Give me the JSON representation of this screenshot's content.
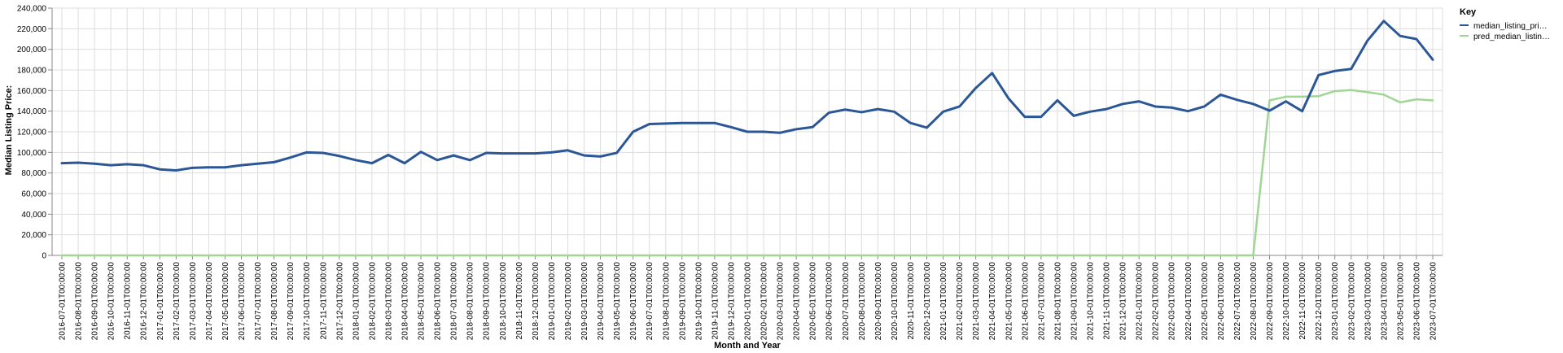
{
  "chart_data": {
    "type": "line",
    "xlabel": "Month and Year",
    "ylabel": "Median Listing Price:",
    "ylim": [
      0,
      240000
    ],
    "yticks": [
      0,
      20000,
      40000,
      60000,
      80000,
      100000,
      120000,
      140000,
      160000,
      180000,
      200000,
      220000,
      240000
    ],
    "ytick_labels": [
      "0",
      "20,000",
      "40,000",
      "60,000",
      "80,000",
      "100,000",
      "120,000",
      "140,000",
      "160,000",
      "180,000",
      "200,000",
      "220,000",
      "240,000"
    ],
    "grid": true,
    "legend": {
      "title": "Key",
      "position": "right",
      "entries": [
        "median_listing_pri…",
        "pred_median_listin…"
      ]
    },
    "categories": [
      "2016-07-01T00:00:00",
      "2016-08-01T00:00:00",
      "2016-09-01T00:00:00",
      "2016-10-01T00:00:00",
      "2016-11-01T00:00:00",
      "2016-12-01T00:00:00",
      "2017-01-01T00:00:00",
      "2017-02-01T00:00:00",
      "2017-03-01T00:00:00",
      "2017-04-01T00:00:00",
      "2017-05-01T00:00:00",
      "2017-06-01T00:00:00",
      "2017-07-01T00:00:00",
      "2017-08-01T00:00:00",
      "2017-09-01T00:00:00",
      "2017-10-01T00:00:00",
      "2017-11-01T00:00:00",
      "2017-12-01T00:00:00",
      "2018-01-01T00:00:00",
      "2018-02-01T00:00:00",
      "2018-03-01T00:00:00",
      "2018-04-01T00:00:00",
      "2018-05-01T00:00:00",
      "2018-06-01T00:00:00",
      "2018-07-01T00:00:00",
      "2018-08-01T00:00:00",
      "2018-09-01T00:00:00",
      "2018-10-01T00:00:00",
      "2018-11-01T00:00:00",
      "2018-12-01T00:00:00",
      "2019-01-01T00:00:00",
      "2019-02-01T00:00:00",
      "2019-03-01T00:00:00",
      "2019-04-01T00:00:00",
      "2019-05-01T00:00:00",
      "2019-06-01T00:00:00",
      "2019-07-01T00:00:00",
      "2019-08-01T00:00:00",
      "2019-09-01T00:00:00",
      "2019-10-01T00:00:00",
      "2019-11-01T00:00:00",
      "2019-12-01T00:00:00",
      "2020-01-01T00:00:00",
      "2020-02-01T00:00:00",
      "2020-03-01T00:00:00",
      "2020-04-01T00:00:00",
      "2020-05-01T00:00:00",
      "2020-06-01T00:00:00",
      "2020-07-01T00:00:00",
      "2020-08-01T00:00:00",
      "2020-09-01T00:00:00",
      "2020-10-01T00:00:00",
      "2020-11-01T00:00:00",
      "2020-12-01T00:00:00",
      "2021-01-01T00:00:00",
      "2021-02-01T00:00:00",
      "2021-03-01T00:00:00",
      "2021-04-01T00:00:00",
      "2021-05-01T00:00:00",
      "2021-06-01T00:00:00",
      "2021-07-01T00:00:00",
      "2021-08-01T00:00:00",
      "2021-09-01T00:00:00",
      "2021-10-01T00:00:00",
      "2021-11-01T00:00:00",
      "2021-12-01T00:00:00",
      "2022-01-01T00:00:00",
      "2022-02-01T00:00:00",
      "2022-03-01T00:00:00",
      "2022-04-01T00:00:00",
      "2022-05-01T00:00:00",
      "2022-06-01T00:00:00",
      "2022-07-01T00:00:00",
      "2022-08-01T00:00:00",
      "2022-09-01T00:00:00",
      "2022-10-01T00:00:00",
      "2022-11-01T00:00:00",
      "2022-12-01T00:00:00",
      "2023-01-01T00:00:00",
      "2023-02-01T00:00:00",
      "2023-03-01T00:00:00",
      "2023-04-01T00:00:00",
      "2023-05-01T00:00:00",
      "2023-06-01T00:00:00",
      "2023-07-01T00:00:00"
    ],
    "series": [
      {
        "name": "median_listing_price",
        "color": "#2b5797",
        "values": [
          89500,
          90000,
          89000,
          87500,
          88500,
          87500,
          83500,
          82500,
          85000,
          85500,
          85500,
          87500,
          89000,
          90500,
          95000,
          100000,
          99500,
          96500,
          92500,
          89500,
          97500,
          89500,
          100500,
          92500,
          97000,
          92500,
          99500,
          99000,
          99000,
          99000,
          100000,
          102000,
          97000,
          96000,
          99500,
          120000,
          127500,
          128000,
          128500,
          128500,
          128500,
          124500,
          120000,
          120000,
          119000,
          122500,
          124500,
          138500,
          141500,
          139000,
          142000,
          139500,
          128500,
          124000,
          139500,
          144500,
          162500,
          177000,
          152500,
          134500,
          134500,
          150500,
          135500,
          139500,
          142000,
          147000,
          149500,
          144500,
          143500,
          140000,
          144500,
          156000,
          151000,
          147000,
          140500,
          149500,
          140000,
          175000,
          179000,
          181000,
          208500,
          227500,
          213000,
          210000,
          190000
        ]
      },
      {
        "name": "pred_median_listing_price",
        "color": "#9fd694",
        "values": [
          0,
          0,
          0,
          0,
          0,
          0,
          0,
          0,
          0,
          0,
          0,
          0,
          0,
          0,
          0,
          0,
          0,
          0,
          0,
          0,
          0,
          0,
          0,
          0,
          0,
          0,
          0,
          0,
          0,
          0,
          0,
          0,
          0,
          0,
          0,
          0,
          0,
          0,
          0,
          0,
          0,
          0,
          0,
          0,
          0,
          0,
          0,
          0,
          0,
          0,
          0,
          0,
          0,
          0,
          0,
          0,
          0,
          0,
          0,
          0,
          0,
          0,
          0,
          0,
          0,
          0,
          0,
          0,
          0,
          0,
          0,
          0,
          0,
          0,
          150500,
          154000,
          154000,
          154500,
          159500,
          160500,
          158500,
          156000,
          148500,
          151500,
          150500
        ]
      }
    ]
  }
}
